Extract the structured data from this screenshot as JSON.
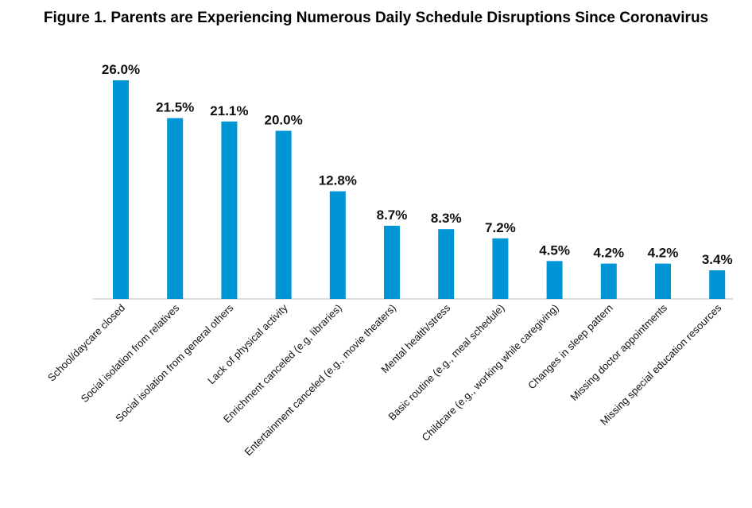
{
  "chart_data": {
    "type": "bar",
    "title": "Figure 1. Parents are Experiencing Numerous Daily Schedule Disruptions Since Coronavirus",
    "categories": [
      "School/daycare closed",
      "Social isolation from relatives",
      "Social isolation from general others",
      "Lack of physical activity",
      "Enrichment canceled (e.g, libraries)",
      "Entertainment canceled (e.g., movie theaters)",
      "Mental health/stress",
      "Basic routine (e.g., meal schedule)",
      "Childcare (e.g., working while caregiving)",
      "Changes in sleep pattern",
      "Missing doctor appointments",
      "Missing special education resources"
    ],
    "values": [
      26.0,
      21.5,
      21.1,
      20.0,
      12.8,
      8.7,
      8.3,
      7.2,
      4.5,
      4.2,
      4.2,
      3.4
    ],
    "value_labels": [
      "26.0%",
      "21.5%",
      "21.1%",
      "20.0%",
      "12.8%",
      "8.7%",
      "8.3%",
      "7.2%",
      "4.5%",
      "4.2%",
      "4.2%",
      "3.4%"
    ],
    "bar_color": "#0096D6",
    "ylim": [
      0,
      26.0
    ],
    "grid": false,
    "legend": "none"
  }
}
